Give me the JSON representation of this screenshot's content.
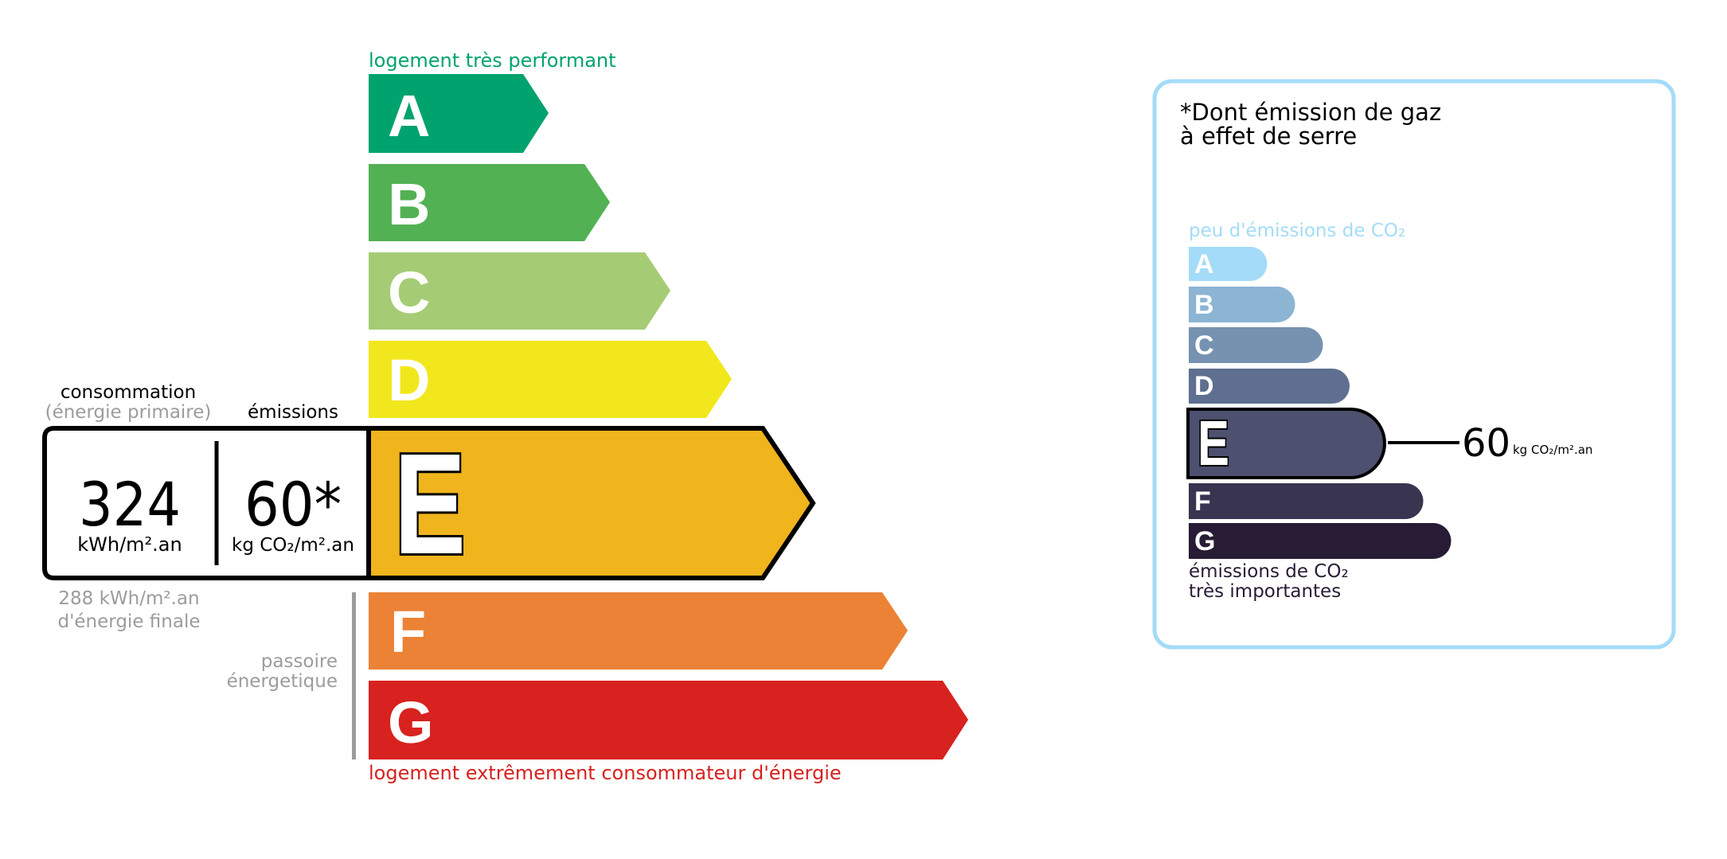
{
  "energy": {
    "top_label": "logement très performant",
    "bottom_label": "logement extrêmement consommateur d'énergie",
    "classes": [
      {
        "letter": "A",
        "color": "#00a36d"
      },
      {
        "letter": "B",
        "color": "#52b153"
      },
      {
        "letter": "C",
        "color": "#a5cc74"
      },
      {
        "letter": "D",
        "color": "#f2e71c"
      },
      {
        "letter": "E",
        "color": "#f0b41c"
      },
      {
        "letter": "F",
        "color": "#eb8235"
      },
      {
        "letter": "G",
        "color": "#d7221f"
      }
    ],
    "current_class": "E",
    "consumption_heading": "consommation",
    "consumption_subheading": "(énergie primaire)",
    "emissions_heading": "émissions",
    "consumption_value": "324",
    "consumption_unit": "kWh/m².an",
    "emissions_value": "60*",
    "emissions_unit": "kg CO₂/m².an",
    "final_energy_value": "288 kWh/m².an",
    "final_energy_label": "d'énergie finale",
    "passoire_line1": "passoire",
    "passoire_line2": "énergetique",
    "top_label_color": "#00a36d",
    "bottom_label_color": "#d7221f"
  },
  "ges": {
    "title_line1": "*Dont émission de gaz",
    "title_line2": "à effet de serre",
    "top_label": "peu d'émissions de CO₂",
    "bottom_label_line1": "émissions de CO₂",
    "bottom_label_line2": "très importantes",
    "classes": [
      {
        "letter": "A",
        "color": "#a4dbf8"
      },
      {
        "letter": "B",
        "color": "#8cb4d3"
      },
      {
        "letter": "C",
        "color": "#7692b1"
      },
      {
        "letter": "D",
        "color": "#5e6f8f"
      },
      {
        "letter": "E",
        "color": "#4d506e"
      },
      {
        "letter": "F",
        "color": "#393550"
      },
      {
        "letter": "G",
        "color": "#281b35"
      }
    ],
    "current_class": "E",
    "value": "60",
    "unit": "kg CO₂/m².an",
    "border_color": "#a4dbf8"
  }
}
